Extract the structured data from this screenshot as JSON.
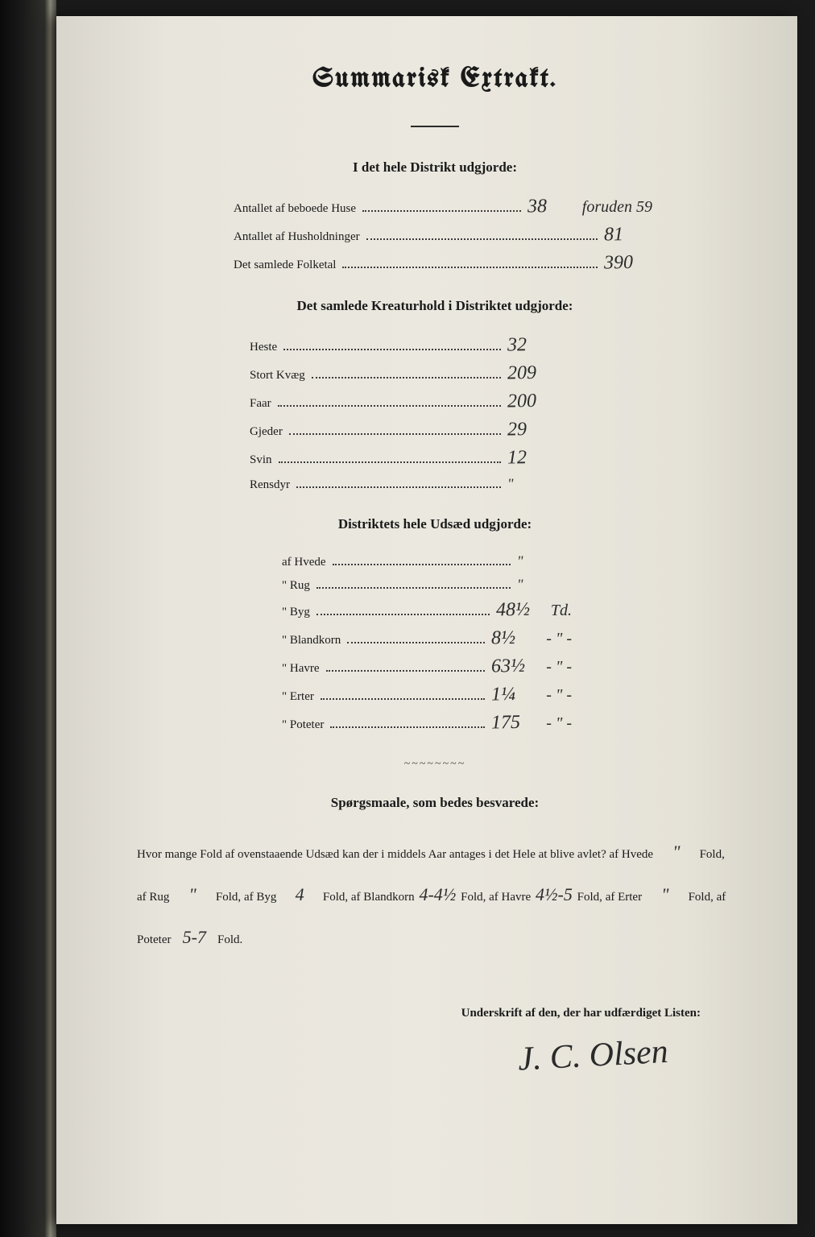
{
  "title": "Summarisk Extrakt.",
  "section1": {
    "heading": "I det hele Distrikt udgjorde:",
    "rows": [
      {
        "label": "Antallet af beboede Huse",
        "value": "38",
        "note": "foruden 59"
      },
      {
        "label": "Antallet af Husholdninger",
        "value": "81",
        "note": ""
      },
      {
        "label": "Det samlede Folketal",
        "value": "390",
        "note": ""
      }
    ]
  },
  "section2": {
    "heading": "Det samlede Kreaturhold i Distriktet udgjorde:",
    "rows": [
      {
        "label": "Heste",
        "value": "32"
      },
      {
        "label": "Stort Kvæg",
        "value": "209"
      },
      {
        "label": "Faar",
        "value": "200"
      },
      {
        "label": "Gjeder",
        "value": "29"
      },
      {
        "label": "Svin",
        "value": "12"
      },
      {
        "label": "Rensdyr",
        "value": "\""
      }
    ]
  },
  "section3": {
    "heading": "Distriktets hele Udsæd udgjorde:",
    "rows": [
      {
        "label": "af Hvede",
        "value": "\"",
        "unit": ""
      },
      {
        "label": "\" Rug",
        "value": "\"",
        "unit": ""
      },
      {
        "label": "\" Byg",
        "value": "48½",
        "unit": "Td."
      },
      {
        "label": "\" Blandkorn",
        "value": "8½",
        "unit": "- \" -"
      },
      {
        "label": "\" Havre",
        "value": "63½",
        "unit": "- \" -"
      },
      {
        "label": "\" Erter",
        "value": "1¼",
        "unit": "- \" -"
      },
      {
        "label": "\" Poteter",
        "value": "175",
        "unit": "- \" -"
      }
    ]
  },
  "questions": {
    "heading": "Spørgsmaale, som bedes besvarede:",
    "intro": "Hvor mange Fold af ovenstaaende Udsæd kan der i middels Aar antages i det Hele at blive avlet?",
    "items": [
      {
        "crop": "af Hvede",
        "value": "\"",
        "suffix": "Fold,"
      },
      {
        "crop": "af Rug",
        "value": "\"",
        "suffix": "Fold,"
      },
      {
        "crop": "af Byg",
        "value": "4",
        "suffix": "Fold,"
      },
      {
        "crop": "af Blandkorn",
        "value": "4-4½",
        "suffix": "Fold,"
      },
      {
        "crop": "af Havre",
        "value": "4½-5",
        "suffix": "Fold,"
      },
      {
        "crop": "af Erter",
        "value": "\"",
        "suffix": "Fold,"
      },
      {
        "crop": "af Poteter",
        "value": "5-7",
        "suffix": "Fold."
      }
    ]
  },
  "signature": {
    "label": "Underskrift af den, der har udfærdiget Listen:",
    "name": "J. C. Olsen"
  }
}
